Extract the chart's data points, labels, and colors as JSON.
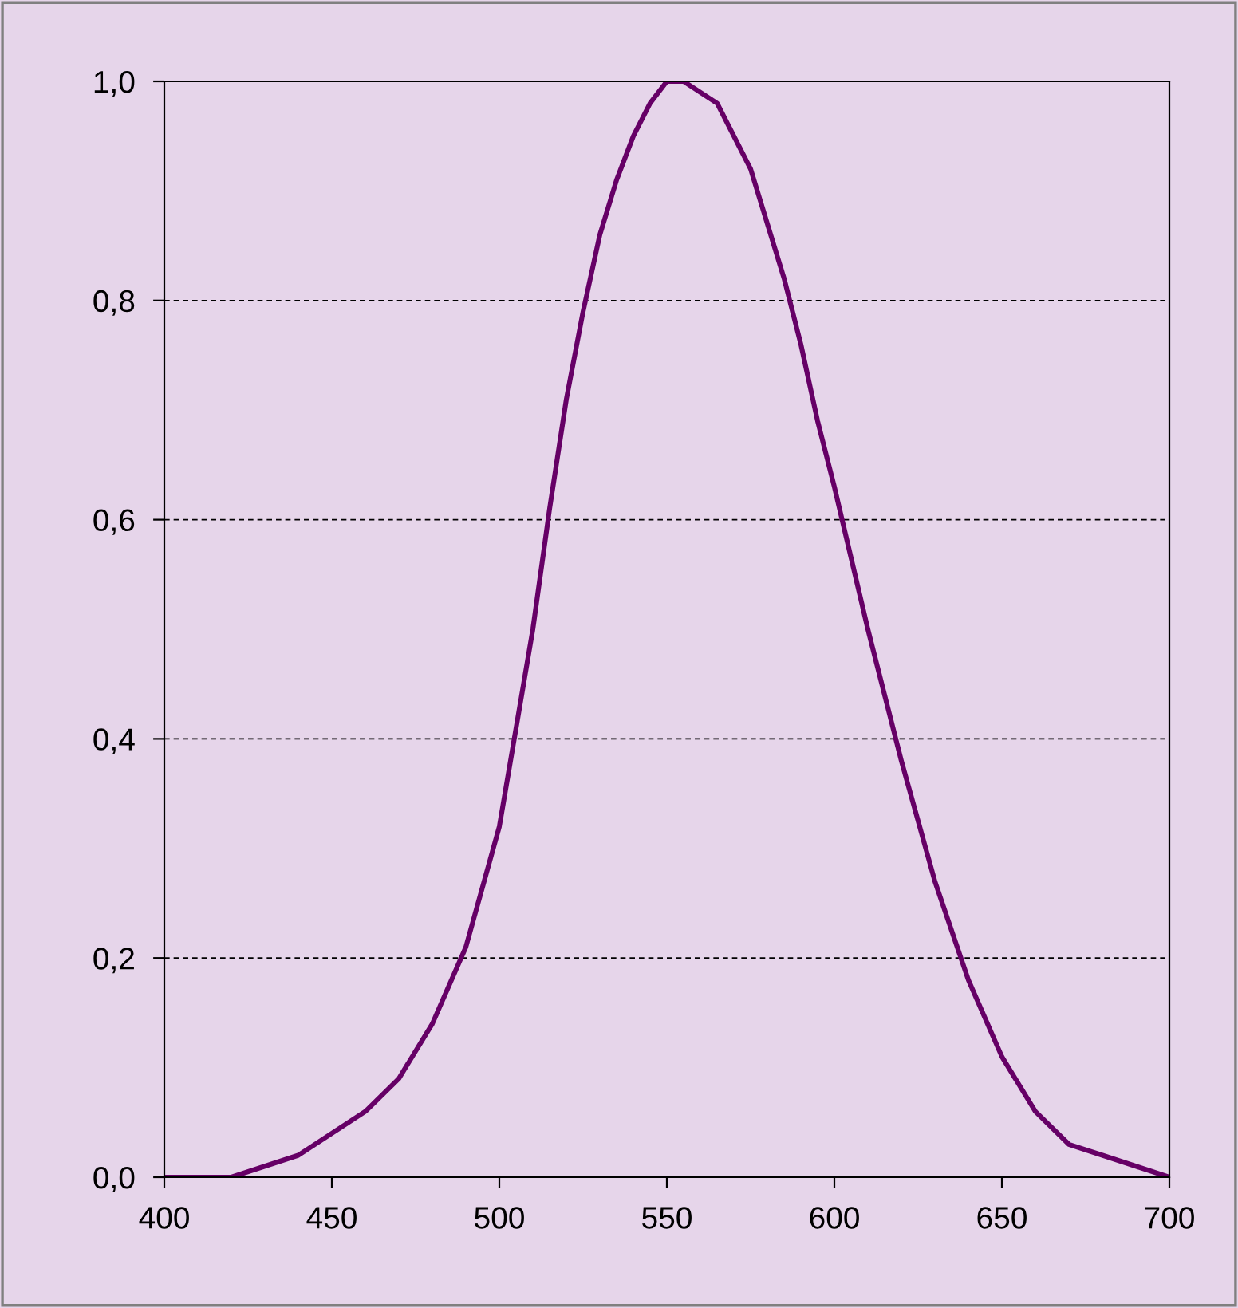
{
  "chart_data": {
    "type": "line",
    "x": [
      400,
      410,
      420,
      430,
      440,
      450,
      460,
      470,
      480,
      490,
      500,
      505,
      510,
      515,
      520,
      525,
      530,
      535,
      540,
      545,
      550,
      555,
      560,
      565,
      570,
      575,
      580,
      585,
      590,
      595,
      600,
      610,
      620,
      630,
      640,
      650,
      660,
      670,
      680,
      690,
      700
    ],
    "series": [
      {
        "color": "#660066",
        "values": [
          0.0,
          0.0,
          0.0,
          0.01,
          0.02,
          0.04,
          0.06,
          0.09,
          0.14,
          0.21,
          0.32,
          0.41,
          0.5,
          0.61,
          0.71,
          0.79,
          0.86,
          0.91,
          0.95,
          0.98,
          1.0,
          1.0,
          0.99,
          0.98,
          0.95,
          0.92,
          0.87,
          0.82,
          0.76,
          0.69,
          0.63,
          0.5,
          0.38,
          0.27,
          0.18,
          0.11,
          0.06,
          0.03,
          0.02,
          0.01,
          0.0
        ]
      }
    ],
    "xlim": [
      400,
      700
    ],
    "xticks": [
      400,
      450,
      500,
      550,
      600,
      650,
      700
    ],
    "ylim": [
      0,
      1
    ],
    "yticks": [
      {
        "value": 0,
        "label": "0,0"
      },
      {
        "value": 0.2,
        "label": "0,2"
      },
      {
        "value": 0.4,
        "label": "0,4"
      },
      {
        "value": 0.6,
        "label": "0,6"
      },
      {
        "value": 0.8,
        "label": "0,8"
      },
      {
        "value": 1,
        "label": "1,0"
      }
    ],
    "grid": "y",
    "marker": "none",
    "line_style": "solid",
    "legend": false
  }
}
